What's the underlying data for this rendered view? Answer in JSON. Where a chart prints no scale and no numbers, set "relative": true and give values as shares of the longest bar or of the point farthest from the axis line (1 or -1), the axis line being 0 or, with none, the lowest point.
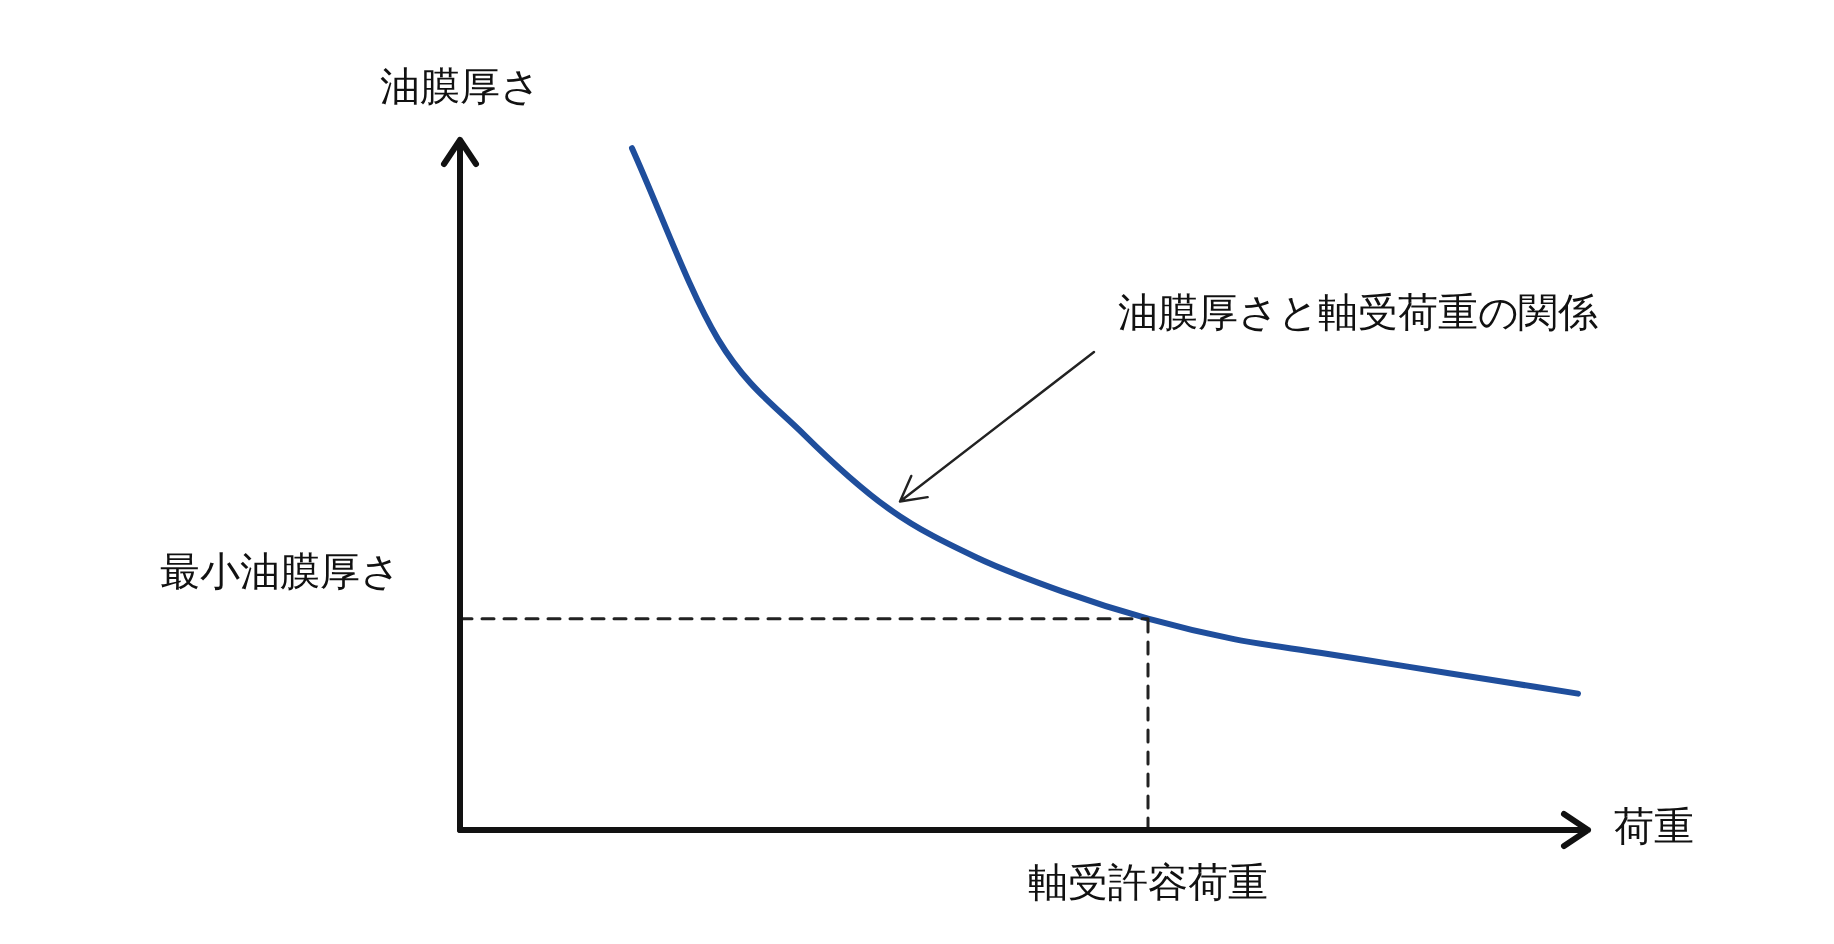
{
  "chart_data": {
    "type": "line",
    "relative": true,
    "xlabel": "荷重",
    "ylabel": "油膜厚さ",
    "categories": [
      null,
      null,
      null,
      null,
      null,
      null,
      null,
      null,
      null,
      null,
      null,
      null,
      null,
      null
    ],
    "series": [
      {
        "color": "#1f4e9c",
        "values": [
          null,
          null,
          1,
          0.72,
          0.58,
          0.47,
          0.4,
          0.35,
          0.31,
          0.28,
          0.26,
          0.24,
          0.22,
          0.2
        ]
      }
    ],
    "ref_lines": [
      {
        "axis": "y",
        "value": 0.31,
        "label": "最小油膜厚さ",
        "line_style": "dashed",
        "color": "#222222"
      }
    ],
    "annotations": [
      "油膜厚さと軸受荷重の関係",
      "軸受許容荷重"
    ],
    "legend": false,
    "marker": "none",
    "line_style": "solid",
    "grid": false
  }
}
